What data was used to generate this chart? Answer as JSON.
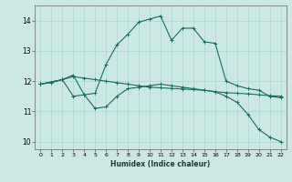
{
  "xlabel": "Humidex (Indice chaleur)",
  "xlim": [
    -0.5,
    22.5
  ],
  "ylim": [
    9.75,
    14.5
  ],
  "yticks": [
    10,
    11,
    12,
    13,
    14
  ],
  "xticks": [
    0,
    1,
    2,
    3,
    4,
    5,
    6,
    7,
    8,
    9,
    10,
    11,
    12,
    13,
    14,
    15,
    16,
    17,
    18,
    19,
    20,
    21,
    22
  ],
  "background_color": "#cce8e5",
  "grid_color": "#a8d0cc",
  "line_color": "#1a6b5e",
  "line1_x": [
    0,
    1,
    2,
    3,
    4,
    5,
    6,
    7,
    8,
    9,
    10,
    11,
    12,
    13,
    14,
    15,
    16,
    17,
    18,
    19,
    20,
    21,
    22
  ],
  "line1_y": [
    11.9,
    11.95,
    12.05,
    12.15,
    12.1,
    12.05,
    12.0,
    11.95,
    11.9,
    11.85,
    11.8,
    11.78,
    11.76,
    11.74,
    11.72,
    11.7,
    11.65,
    11.62,
    11.6,
    11.58,
    11.55,
    11.52,
    11.5
  ],
  "line2_x": [
    0,
    2,
    3,
    4,
    5,
    6,
    7,
    8,
    9,
    10,
    11,
    12,
    13,
    14,
    15,
    16,
    17,
    18,
    19,
    20,
    21,
    22
  ],
  "line2_y": [
    11.9,
    12.05,
    12.2,
    11.55,
    11.6,
    12.55,
    13.2,
    13.55,
    13.95,
    14.05,
    14.15,
    13.35,
    13.75,
    13.75,
    13.3,
    13.25,
    12.0,
    11.85,
    11.75,
    11.7,
    11.5,
    11.45
  ],
  "line3_x": [
    0,
    2,
    3,
    4,
    5,
    6,
    7,
    8,
    9,
    10,
    11,
    12,
    13,
    14,
    15,
    16,
    17,
    18,
    19,
    20,
    21,
    22
  ],
  "line3_y": [
    11.9,
    12.05,
    11.5,
    11.55,
    11.1,
    11.15,
    11.5,
    11.75,
    11.8,
    11.85,
    11.9,
    11.85,
    11.8,
    11.75,
    11.7,
    11.65,
    11.5,
    11.3,
    10.9,
    10.4,
    10.15,
    10.0
  ]
}
